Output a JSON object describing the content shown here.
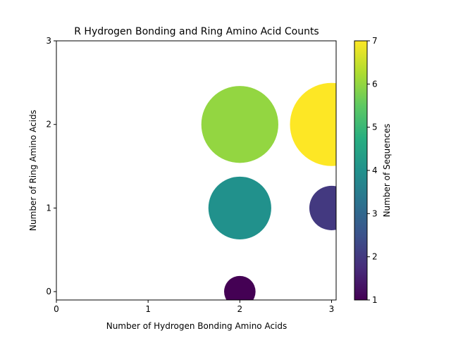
{
  "chart_data": {
    "type": "scatter",
    "title": "R Hydrogen Bonding and Ring Amino Acid Counts",
    "xlabel": "Number of Hydrogen Bonding Amino Acids",
    "ylabel": "Number of Ring Amino Acids",
    "xlim": [
      0,
      3.05
    ],
    "ylim": [
      -0.1,
      3
    ],
    "xticks": [
      "0",
      "1",
      "2",
      "3"
    ],
    "yticks": [
      "0",
      "1",
      "2",
      "3"
    ],
    "grid": false,
    "points": [
      {
        "x": 2,
        "y": 0,
        "count": 1
      },
      {
        "x": 2,
        "y": 1,
        "count": 4
      },
      {
        "x": 2,
        "y": 2,
        "count": 6
      },
      {
        "x": 3,
        "y": 1,
        "count": 2
      },
      {
        "x": 3,
        "y": 2,
        "count": 7
      }
    ],
    "colorbar": {
      "label": "Number of Sequences",
      "colormap": "viridis",
      "range": [
        1,
        7
      ],
      "ticks": [
        "1",
        "2",
        "3",
        "4",
        "5",
        "6",
        "7"
      ]
    }
  }
}
